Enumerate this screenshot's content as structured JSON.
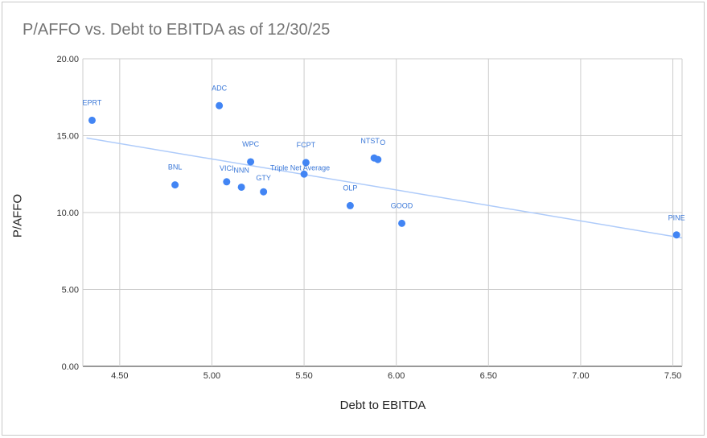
{
  "chart_data": {
    "type": "scatter",
    "title": "P/AFFO vs. Debt to EBITDA as of 12/30/25",
    "xlabel": "Debt to EBITDA",
    "ylabel": "P/AFFO",
    "xlim": [
      4.3,
      7.55
    ],
    "ylim": [
      0,
      20
    ],
    "x_ticks": [
      "4.50",
      "5.00",
      "5.50",
      "6.00",
      "6.50",
      "7.00",
      "7.50"
    ],
    "y_ticks": [
      "0.00",
      "5.00",
      "10.00",
      "15.00",
      "20.00"
    ],
    "point_color": "#4285f4",
    "label_color": "#3b78d8",
    "trendline_color": "#aecbfa",
    "points": [
      {
        "label": "EPRT",
        "x": 4.35,
        "y": 16.0
      },
      {
        "label": "ADC",
        "x": 5.04,
        "y": 16.95
      },
      {
        "label": "BNL",
        "x": 4.8,
        "y": 11.8
      },
      {
        "label": "VICI",
        "x": 5.08,
        "y": 12.0
      },
      {
        "label": "NNN",
        "x": 5.16,
        "y": 11.65
      },
      {
        "label": "WPC",
        "x": 5.21,
        "y": 13.3
      },
      {
        "label": "GTY",
        "x": 5.28,
        "y": 11.35
      },
      {
        "label": "FCPT",
        "x": 5.51,
        "y": 13.25
      },
      {
        "label": "Triple Net Average",
        "x": 5.5,
        "y": 12.5
      },
      {
        "label": "NTST",
        "x": 5.88,
        "y": 13.55
      },
      {
        "label": "O",
        "x": 5.9,
        "y": 13.45
      },
      {
        "label": "OLP",
        "x": 5.75,
        "y": 10.45
      },
      {
        "label": "GOOD",
        "x": 6.03,
        "y": 9.3
      },
      {
        "label": "PINE",
        "x": 7.52,
        "y": 8.55
      }
    ],
    "trendline": {
      "x": [
        4.32,
        7.55
      ],
      "y": [
        14.85,
        8.35
      ]
    },
    "grid": true,
    "legend": "none"
  }
}
